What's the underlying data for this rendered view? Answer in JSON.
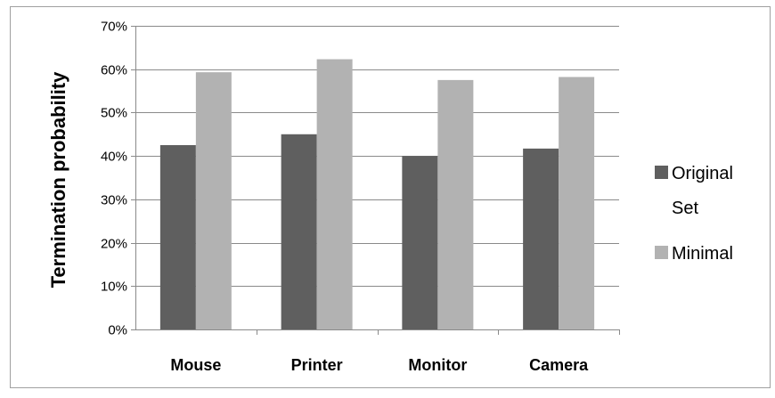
{
  "chart_data": {
    "type": "bar",
    "title": "",
    "xlabel": "",
    "ylabel": "Termination probability",
    "categories": [
      "Mouse",
      "Printer",
      "Monitor",
      "Camera"
    ],
    "series": [
      {
        "name": "Original Set",
        "values": [
          0.425,
          0.45,
          0.4,
          0.417
        ]
      },
      {
        "name": "Minimal",
        "values": [
          0.593,
          0.623,
          0.575,
          0.582
        ]
      }
    ],
    "ylim": [
      0,
      0.7
    ],
    "yticks": [
      "0%",
      "10%",
      "20%",
      "30%",
      "40%",
      "50%",
      "60%",
      "70%"
    ],
    "grid": true,
    "legend_position": "right",
    "colors": {
      "Original Set": "#5f5f5f",
      "Minimal": "#b2b2b2",
      "grid": "#8a8a8a",
      "frame": "#a0a0a0"
    }
  }
}
